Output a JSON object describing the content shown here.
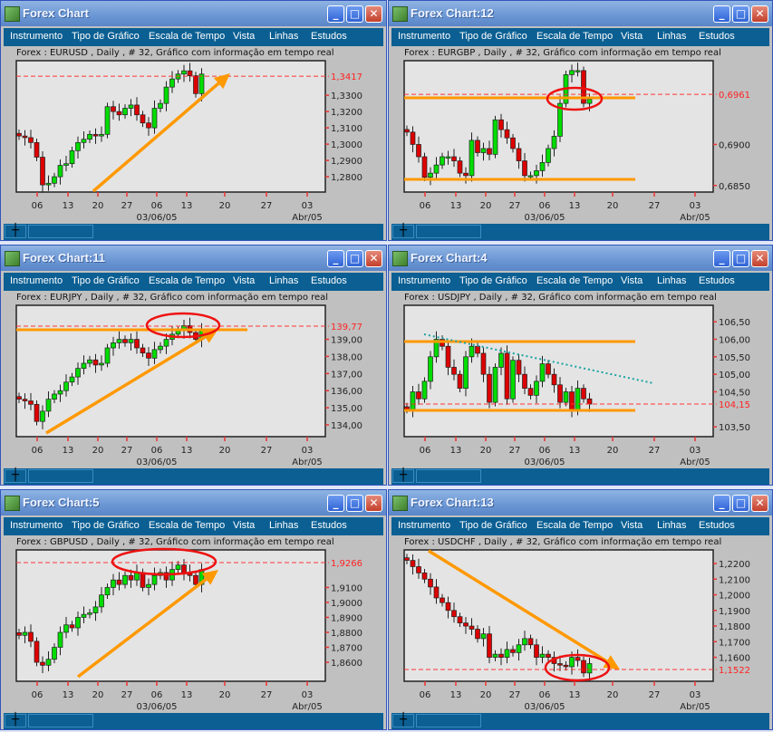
{
  "menu": [
    "Instrumento",
    "Tipo de Gráfico",
    "Escala de Tempo",
    "Vista",
    "Linhas",
    "Estudos"
  ],
  "window_buttons": {
    "minimize": "_",
    "maximize": "□",
    "close": "✕"
  },
  "status_icon": "crosshair-icon",
  "x_ticks": [
    "06",
    "13",
    "20",
    "27",
    "06",
    "13",
    "20",
    "27",
    "03"
  ],
  "date_label": "03/06/05",
  "month_label": "Abr/05",
  "colors": {
    "bull": "#00dd00",
    "bear": "#dd0000",
    "annotation": "#ff9900",
    "circle": "#ee1111",
    "trend": "#1aa3a3",
    "price_line": "#ff3333"
  },
  "windows": [
    {
      "title": "Forex Chart",
      "info": "Forex : EURUSD , Daily , # 32, Gráfico com informação em tempo real"
    },
    {
      "title": "Forex Chart:12",
      "info": "Forex : EURGBP , Daily , # 32, Gráfico com informação em tempo real"
    },
    {
      "title": "Forex Chart:11",
      "info": "Forex : EURJPY , Daily , # 32, Gráfico com informação em tempo real"
    },
    {
      "title": "Forex Chart:4",
      "info": "Forex : USDJPY , Daily , # 32, Gráfico com informação em tempo real"
    },
    {
      "title": "Forex Chart:5",
      "info": "Forex : GBPUSD , Daily , # 32, Gráfico com informação em tempo real"
    },
    {
      "title": "Forex Chart:13",
      "info": "Forex : USDCHF , Daily , # 32, Gráfico com informação em tempo real"
    }
  ],
  "chart_data": [
    {
      "type": "candlestick",
      "symbol": "EURUSD",
      "current_price": "1,3417",
      "current_value": 1.3417,
      "ylim": [
        1.2706,
        1.3512
      ],
      "y_ticks": [
        {
          "label": "1,3300",
          "value": 1.33
        },
        {
          "label": "1,3200",
          "value": 1.32
        },
        {
          "label": "1,3100",
          "value": 1.31
        },
        {
          "label": "1,3000",
          "value": 1.3
        },
        {
          "label": "1,2900",
          "value": 1.29
        },
        {
          "label": "1,2800",
          "value": 1.28
        }
      ],
      "closes": [
        1.305,
        1.304,
        1.301,
        1.292,
        1.275,
        1.276,
        1.28,
        1.287,
        1.288,
        1.296,
        1.301,
        1.303,
        1.306,
        1.305,
        1.306,
        1.323,
        1.32,
        1.318,
        1.322,
        1.324,
        1.318,
        1.313,
        1.31,
        1.322,
        1.325,
        1.335,
        1.34,
        1.343,
        1.345,
        1.342,
        1.331,
        1.343
      ]
    },
    {
      "type": "candlestick",
      "symbol": "EURGBP",
      "current_price": "0,6961",
      "current_value": 0.6961,
      "ylim": [
        0.6842,
        0.7002
      ],
      "y_ticks": [
        {
          "label": "0,6900",
          "value": 0.69
        },
        {
          "label": "0,6850",
          "value": 0.685
        }
      ],
      "closes": [
        0.6915,
        0.69,
        0.6885,
        0.686,
        0.6865,
        0.6875,
        0.6885,
        0.6885,
        0.688,
        0.6865,
        0.6862,
        0.6905,
        0.689,
        0.6895,
        0.6888,
        0.693,
        0.6918,
        0.6908,
        0.6895,
        0.688,
        0.6862,
        0.6862,
        0.6868,
        0.6878,
        0.6895,
        0.691,
        0.695,
        0.6985,
        0.699,
        0.699,
        0.695,
        0.6955
      ]
    },
    {
      "type": "candlestick",
      "symbol": "EURJPY",
      "current_price": "139,77",
      "current_value": 139.77,
      "ylim": [
        133.31,
        140.99
      ],
      "y_ticks": [
        {
          "label": "139,00",
          "value": 139
        },
        {
          "label": "138,00",
          "value": 138
        },
        {
          "label": "137,00",
          "value": 137
        },
        {
          "label": "136,00",
          "value": 136
        },
        {
          "label": "135,00",
          "value": 135
        },
        {
          "label": "134,00",
          "value": 134
        }
      ],
      "closes": [
        135.5,
        135.4,
        135.2,
        134.2,
        134.8,
        135.5,
        135.8,
        136.0,
        136.5,
        136.8,
        137.3,
        137.6,
        137.8,
        137.5,
        137.6,
        138.5,
        138.8,
        139.0,
        138.8,
        139.0,
        138.5,
        138.2,
        137.9,
        138.4,
        138.6,
        139.0,
        139.3,
        139.5,
        139.8,
        139.4,
        139.0,
        139.6
      ]
    },
    {
      "type": "candlestick",
      "symbol": "USDJPY",
      "current_price": "104,15",
      "current_value": 104.15,
      "ylim": [
        103.22,
        106.97
      ],
      "y_ticks": [
        {
          "label": "106,50",
          "value": 106.5
        },
        {
          "label": "106,00",
          "value": 106
        },
        {
          "label": "105,50",
          "value": 105.5
        },
        {
          "label": "105,00",
          "value": 105
        },
        {
          "label": "104,50",
          "value": 104.5
        },
        {
          "label": "103,50",
          "value": 103.5
        }
      ],
      "closes": [
        104.0,
        104.5,
        104.3,
        104.8,
        105.5,
        106.0,
        105.8,
        105.2,
        105.0,
        104.6,
        105.5,
        105.8,
        105.6,
        105.0,
        104.2,
        105.2,
        105.6,
        104.3,
        105.4,
        105.0,
        104.6,
        104.4,
        104.8,
        105.3,
        105.0,
        104.7,
        104.2,
        104.5,
        104.0,
        104.6,
        104.3,
        104.15
      ]
    },
    {
      "type": "candlestick",
      "symbol": "GBPUSD",
      "current_price": "1,9266",
      "current_value": 1.9266,
      "ylim": [
        1.8473,
        1.9351
      ],
      "y_ticks": [
        {
          "label": "1,9100",
          "value": 1.91
        },
        {
          "label": "1,9000",
          "value": 1.9
        },
        {
          "label": "1,8900",
          "value": 1.89
        },
        {
          "label": "1,8800",
          "value": 1.88
        },
        {
          "label": "1,8700",
          "value": 1.87
        },
        {
          "label": "1,8600",
          "value": 1.86
        }
      ],
      "closes": [
        1.878,
        1.88,
        1.874,
        1.86,
        1.858,
        1.862,
        1.87,
        1.88,
        1.885,
        1.883,
        1.89,
        1.892,
        1.893,
        1.897,
        1.905,
        1.91,
        1.915,
        1.912,
        1.918,
        1.915,
        1.92,
        1.91,
        1.912,
        1.918,
        1.92,
        1.915,
        1.922,
        1.925,
        1.92,
        1.918,
        1.912,
        1.922
      ]
    },
    {
      "type": "candlestick",
      "symbol": "USDCHF",
      "current_price": "1,1522",
      "current_value": 1.1522,
      "ylim": [
        1.1447,
        1.2287
      ],
      "y_ticks": [
        {
          "label": "1,2200",
          "value": 1.22
        },
        {
          "label": "1,2100",
          "value": 1.21
        },
        {
          "label": "1,2000",
          "value": 1.2
        },
        {
          "label": "1,1900",
          "value": 1.19
        },
        {
          "label": "1,1800",
          "value": 1.18
        },
        {
          "label": "1,1700",
          "value": 1.17
        },
        {
          "label": "1,1600",
          "value": 1.16
        }
      ],
      "closes": [
        1.222,
        1.218,
        1.214,
        1.21,
        1.205,
        1.198,
        1.195,
        1.19,
        1.186,
        1.182,
        1.18,
        1.178,
        1.172,
        1.175,
        1.16,
        1.162,
        1.16,
        1.165,
        1.163,
        1.168,
        1.172,
        1.168,
        1.16,
        1.162,
        1.16,
        1.156,
        1.155,
        1.154,
        1.16,
        1.158,
        1.15,
        1.156
      ]
    }
  ]
}
